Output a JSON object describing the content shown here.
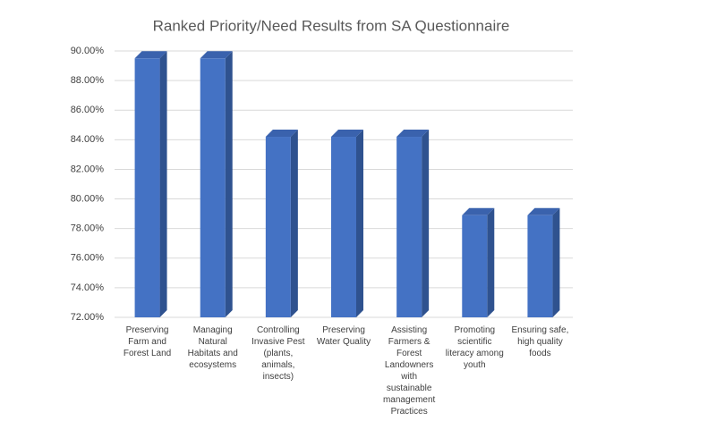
{
  "chart_data": {
    "type": "bar3d",
    "title": "Ranked Priority/Need Results from SA Questionnaire",
    "categories": [
      "Preserving Farm and Forest Land",
      "Managing Natural Habitats and ecosystems",
      "Controlling Invasive Pest (plants, animals, insects)",
      "Preserving Water Quality",
      "Assisting Farmers & Forest Landowners with sustainable management Practices",
      "Promoting scientific literacy among youth",
      "Ensuring safe, high quality foods"
    ],
    "values": [
      89.5,
      89.5,
      84.2,
      84.2,
      84.2,
      78.9,
      78.9
    ],
    "color": "#4472c4",
    "ylim": [
      72,
      90
    ],
    "yticks": [
      {
        "value": 72,
        "label": "72.00%"
      },
      {
        "value": 74,
        "label": "74.00%"
      },
      {
        "value": 76,
        "label": "76.00%"
      },
      {
        "value": 78,
        "label": "78.00%"
      },
      {
        "value": 80,
        "label": "80.00%"
      },
      {
        "value": 82,
        "label": "82.00%"
      },
      {
        "value": 84,
        "label": "84.00%"
      },
      {
        "value": 86,
        "label": "86.00%"
      },
      {
        "value": 88,
        "label": "88.00%"
      },
      {
        "value": 90,
        "label": "90.00%"
      }
    ],
    "grid": true
  }
}
